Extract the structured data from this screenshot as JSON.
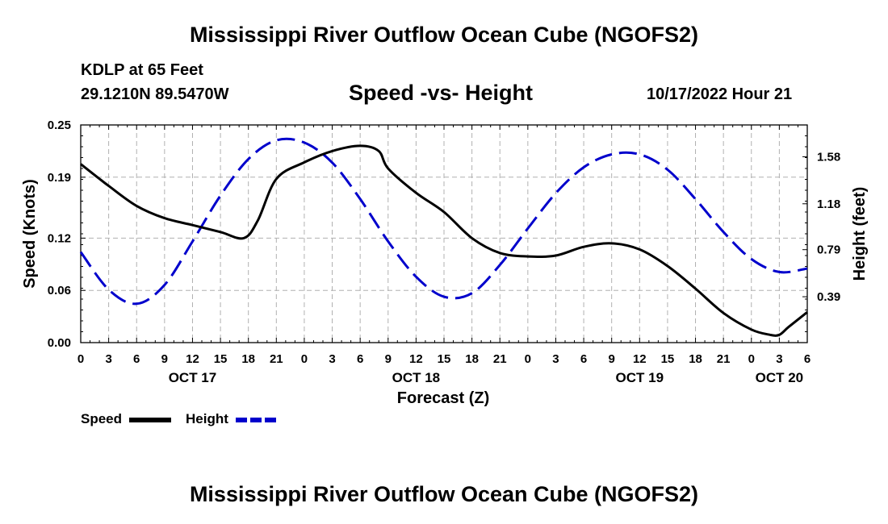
{
  "header": {
    "title": "Mississippi River Outflow Ocean Cube (NGOFS2)",
    "station": "KDLP at 65 Feet",
    "coords": "29.1210N  89.5470W",
    "subtitle": "Speed -vs- Height",
    "datetime": "10/17/2022 Hour 21"
  },
  "footer": {
    "title": "Mississippi River Outflow Ocean Cube (NGOFS2)"
  },
  "colors": {
    "speed": "#000000",
    "height": "#0000cc",
    "grid": "#b0b0b0"
  },
  "chart_data": {
    "type": "line",
    "title": "Speed -vs- Height",
    "xlabel": "Forecast (Z)",
    "ylabel": "Speed (Knots)",
    "ylabel_right": "Height (feet)",
    "xlim": [
      0,
      78
    ],
    "ylim": [
      0,
      0.25
    ],
    "ylim_right": [
      0,
      1.85
    ],
    "x_ticks": [
      0,
      3,
      6,
      9,
      12,
      15,
      18,
      21,
      24,
      27,
      30,
      33,
      36,
      39,
      42,
      45,
      48,
      51,
      54,
      57,
      60,
      63,
      66,
      69,
      72,
      75,
      78
    ],
    "x_tick_labels": [
      "0",
      "3",
      "6",
      "9",
      "12",
      "15",
      "18",
      "21",
      "0",
      "3",
      "6",
      "9",
      "12",
      "15",
      "18",
      "21",
      "0",
      "3",
      "6",
      "9",
      "12",
      "15",
      "18",
      "21",
      "0",
      "3",
      "6"
    ],
    "day_labels": [
      {
        "x": 12,
        "label": "OCT 17"
      },
      {
        "x": 36,
        "label": "OCT 18"
      },
      {
        "x": 60,
        "label": "OCT 19"
      },
      {
        "x": 75,
        "label": "OCT 20"
      }
    ],
    "y_ticks": [
      0,
      0.06,
      0.12,
      0.19,
      0.25
    ],
    "y_tick_labels": [
      "0.00",
      "0.06",
      "0.12",
      "0.19",
      "0.25"
    ],
    "y_ticks_right": [
      0.39,
      0.79,
      1.18,
      1.58
    ],
    "y_tick_labels_right": [
      "0.39",
      "0.79",
      "1.18",
      "1.58"
    ],
    "grid": true,
    "legend_position": "bottom-left",
    "series": [
      {
        "name": "Speed",
        "axis": "left",
        "style": "solid",
        "x": [
          0,
          3,
          6,
          9,
          12,
          15,
          17.5,
          19,
          21,
          24,
          27,
          30,
          32,
          33,
          36,
          39,
          42,
          45,
          48,
          51,
          54,
          57,
          60,
          63,
          66,
          69,
          72,
          74,
          75,
          76,
          78
        ],
        "y": [
          0.205,
          0.18,
          0.157,
          0.143,
          0.135,
          0.127,
          0.12,
          0.14,
          0.188,
          0.207,
          0.22,
          0.226,
          0.22,
          0.2,
          0.172,
          0.15,
          0.12,
          0.103,
          0.099,
          0.1,
          0.11,
          0.114,
          0.107,
          0.088,
          0.062,
          0.034,
          0.015,
          0.009,
          0.009,
          0.018,
          0.035
        ]
      },
      {
        "name": "Height",
        "axis": "right",
        "style": "dashed",
        "x": [
          0,
          3,
          6,
          9,
          12,
          15,
          18,
          21,
          24,
          27,
          30,
          33,
          36,
          39,
          42,
          45,
          48,
          51,
          54,
          57,
          60,
          63,
          66,
          69,
          72,
          75,
          78
        ],
        "y": [
          0.77,
          0.45,
          0.33,
          0.49,
          0.86,
          1.25,
          1.56,
          1.72,
          1.7,
          1.53,
          1.22,
          0.86,
          0.56,
          0.39,
          0.42,
          0.66,
          0.97,
          1.27,
          1.49,
          1.6,
          1.6,
          1.47,
          1.22,
          0.94,
          0.71,
          0.6,
          0.63
        ]
      }
    ]
  }
}
